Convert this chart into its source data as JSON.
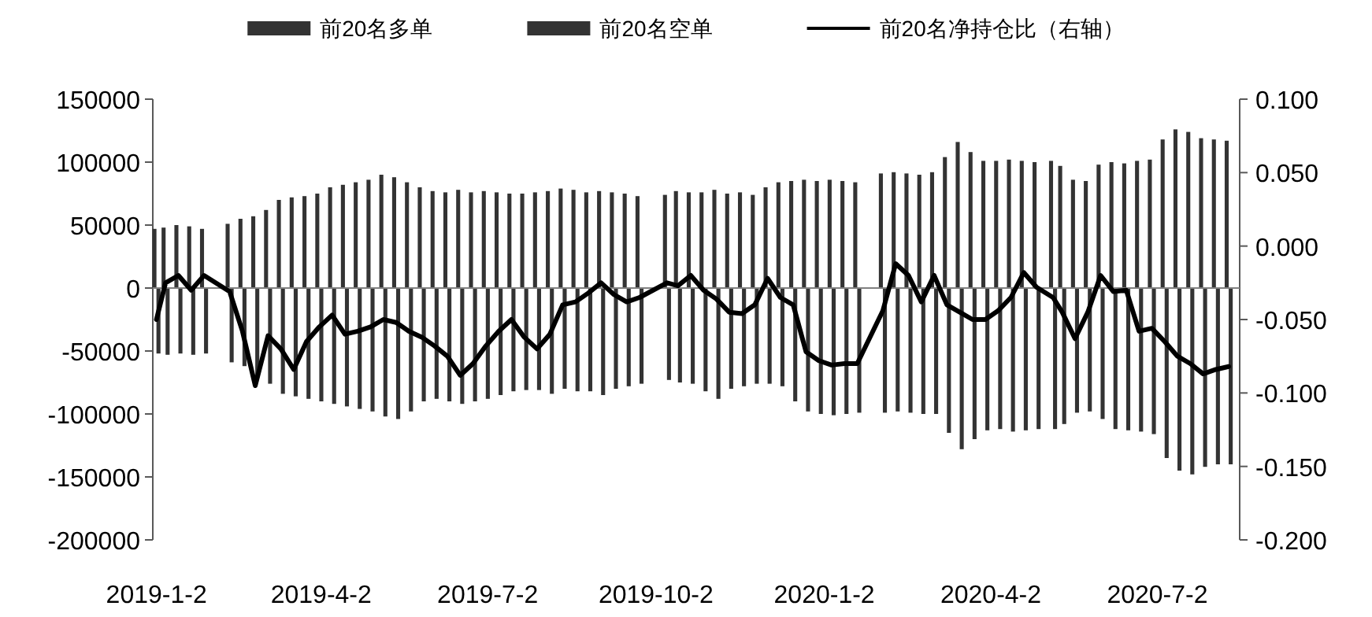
{
  "chart_data": {
    "type": "bar",
    "x": [
      "2019-01-02",
      "2019-01-07",
      "2019-01-14",
      "2019-01-21",
      "2019-01-28",
      "2019-02-11",
      "2019-02-18",
      "2019-02-25",
      "2019-03-04",
      "2019-03-11",
      "2019-03-18",
      "2019-03-25",
      "2019-04-01",
      "2019-04-08",
      "2019-04-15",
      "2019-04-22",
      "2019-04-29",
      "2019-05-06",
      "2019-05-13",
      "2019-05-20",
      "2019-05-27",
      "2019-06-03",
      "2019-06-10",
      "2019-06-17",
      "2019-06-24",
      "2019-07-01",
      "2019-07-08",
      "2019-07-15",
      "2019-07-22",
      "2019-07-29",
      "2019-08-05",
      "2019-08-12",
      "2019-08-19",
      "2019-08-26",
      "2019-09-02",
      "2019-09-09",
      "2019-09-16",
      "2019-09-23",
      "2019-10-08",
      "2019-10-14",
      "2019-10-21",
      "2019-10-28",
      "2019-11-04",
      "2019-11-11",
      "2019-11-18",
      "2019-11-25",
      "2019-12-02",
      "2019-12-09",
      "2019-12-16",
      "2019-12-23",
      "2019-12-30",
      "2020-01-06",
      "2020-01-13",
      "2020-01-20",
      "2020-02-03",
      "2020-02-10",
      "2020-02-17",
      "2020-02-24",
      "2020-03-02",
      "2020-03-09",
      "2020-03-16",
      "2020-03-23",
      "2020-03-30",
      "2020-04-06",
      "2020-04-13",
      "2020-04-20",
      "2020-04-27",
      "2020-05-06",
      "2020-05-11",
      "2020-05-18",
      "2020-05-25",
      "2020-06-01",
      "2020-06-08",
      "2020-06-15",
      "2020-06-22",
      "2020-06-29",
      "2020-07-06",
      "2020-07-13",
      "2020-07-20",
      "2020-07-27",
      "2020-08-03",
      "2020-08-10"
    ],
    "series": [
      {
        "name": "前20名多单",
        "color": "#333333",
        "values": [
          47000,
          48000,
          50000,
          49000,
          47000,
          51000,
          55000,
          57000,
          62000,
          70000,
          72000,
          73000,
          75000,
          80000,
          82000,
          84000,
          86000,
          90000,
          88000,
          84000,
          80000,
          77000,
          76000,
          78000,
          76000,
          77000,
          76000,
          75000,
          75000,
          76000,
          77000,
          79000,
          78000,
          76000,
          77000,
          76000,
          75000,
          73000,
          74000,
          77000,
          76000,
          76000,
          78000,
          75000,
          76000,
          74000,
          80000,
          84000,
          85000,
          86000,
          85000,
          86000,
          85000,
          84000,
          91000,
          92000,
          91000,
          90000,
          92000,
          104000,
          116000,
          108000,
          101000,
          101000,
          102000,
          101000,
          100000,
          101000,
          97000,
          86000,
          85000,
          98000,
          100000,
          99000,
          101000,
          102000,
          118000,
          126000,
          124000,
          119000,
          118000,
          117000
        ]
      },
      {
        "name": "前20名空单",
        "color": "#333333",
        "values": [
          -52000,
          -53000,
          -52000,
          -53000,
          -52000,
          -59000,
          -62000,
          -70000,
          -76000,
          -84000,
          -86000,
          -88000,
          -90000,
          -92000,
          -94000,
          -96000,
          -98000,
          -102000,
          -104000,
          -98000,
          -90000,
          -88000,
          -90000,
          -92000,
          -90000,
          -88000,
          -85000,
          -82000,
          -81000,
          -81000,
          -84000,
          -80000,
          -82000,
          -82000,
          -85000,
          -80000,
          -78000,
          -76000,
          -73000,
          -75000,
          -76000,
          -82000,
          -88000,
          -80000,
          -78000,
          -76000,
          -76000,
          -78000,
          -90000,
          -98000,
          -100000,
          -101000,
          -100000,
          -99000,
          -99000,
          -98000,
          -99000,
          -100000,
          -100000,
          -115000,
          -128000,
          -120000,
          -113000,
          -112000,
          -114000,
          -113000,
          -112000,
          -112000,
          -108000,
          -99000,
          -98000,
          -104000,
          -112000,
          -113000,
          -114000,
          -116000,
          -135000,
          -145000,
          -148000,
          -142000,
          -140000,
          -140000
        ]
      },
      {
        "name": "前20名净持仓比（右轴）",
        "type": "line",
        "axis": "y2",
        "color": "#000000",
        "values": [
          -0.05,
          -0.025,
          -0.02,
          -0.03,
          -0.02,
          -0.031,
          -0.058,
          -0.095,
          -0.061,
          -0.07,
          -0.084,
          -0.065,
          -0.055,
          -0.047,
          -0.06,
          -0.058,
          -0.055,
          -0.05,
          -0.052,
          -0.058,
          -0.062,
          -0.068,
          -0.075,
          -0.088,
          -0.08,
          -0.068,
          -0.058,
          -0.05,
          -0.062,
          -0.07,
          -0.06,
          -0.04,
          -0.038,
          -0.032,
          -0.025,
          -0.033,
          -0.038,
          -0.035,
          -0.025,
          -0.027,
          -0.02,
          -0.03,
          -0.036,
          -0.045,
          -0.046,
          -0.04,
          -0.022,
          -0.035,
          -0.04,
          -0.072,
          -0.078,
          -0.081,
          -0.08,
          -0.08,
          -0.044,
          -0.012,
          -0.02,
          -0.038,
          -0.02,
          -0.04,
          -0.045,
          -0.05,
          -0.05,
          -0.044,
          -0.035,
          -0.018,
          -0.028,
          -0.035,
          -0.045,
          -0.063,
          -0.045,
          -0.02,
          -0.031,
          -0.03,
          -0.058,
          -0.056,
          -0.065,
          -0.075,
          -0.08,
          -0.087,
          -0.084,
          -0.082
        ]
      }
    ],
    "xlim": [
      "2018-12-31",
      "2020-08-16"
    ],
    "xticks": [
      {
        "value": "2019-01-02",
        "label": "2019-1-2"
      },
      {
        "value": "2019-04-02",
        "label": "2019-4-2"
      },
      {
        "value": "2019-07-02",
        "label": "2019-7-2"
      },
      {
        "value": "2019-10-02",
        "label": "2019-10-2"
      },
      {
        "value": "2020-01-02",
        "label": "2020-1-2"
      },
      {
        "value": "2020-04-02",
        "label": "2020-4-2"
      },
      {
        "value": "2020-07-02",
        "label": "2020-7-2"
      }
    ],
    "ylim": [
      -200000,
      150000
    ],
    "yticks": [
      -200000,
      -150000,
      -100000,
      -50000,
      0,
      50000,
      100000,
      150000
    ],
    "y2lim": [
      -0.2,
      0.1
    ],
    "y2ticks": [
      {
        "value": -0.2,
        "label": "-0.200"
      },
      {
        "value": -0.15,
        "label": "-0.150"
      },
      {
        "value": -0.1,
        "label": "-0.100"
      },
      {
        "value": -0.05,
        "label": "-0.050"
      },
      {
        "value": 0,
        "label": "0.000"
      },
      {
        "value": 0.05,
        "label": "0.050"
      },
      {
        "value": 0.1,
        "label": "0.100"
      }
    ],
    "ref_lines": [
      {
        "axis": "y",
        "value": 0,
        "color": "#808080"
      }
    ],
    "legend": "top",
    "grid": false
  }
}
